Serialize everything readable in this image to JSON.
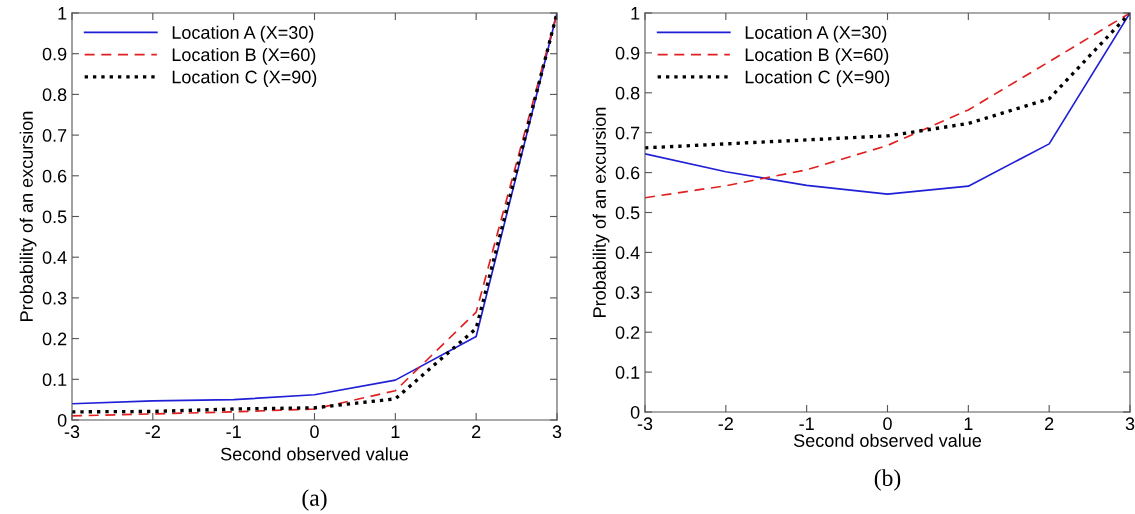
{
  "chart_data": [
    {
      "type": "line",
      "x": [
        -3,
        -2,
        -1,
        0,
        1,
        2,
        3
      ],
      "xlabel": "Second observed value",
      "ylabel": "Probability of an excursion",
      "xlim": [
        -3,
        3
      ],
      "ylim": [
        0,
        1
      ],
      "xticks": [
        -3,
        -2,
        -1,
        0,
        1,
        2,
        3
      ],
      "yticks": [
        0,
        0.1,
        0.2,
        0.3,
        0.4,
        0.5,
        0.6,
        0.7,
        0.8,
        0.9,
        1
      ],
      "grid": false,
      "legend": "top left",
      "annotations": [
        "(a)"
      ],
      "series": [
        {
          "name": "Location A (X=30)",
          "color": "#1f1fd6",
          "line_style": "solid",
          "values": [
            0.04,
            0.047,
            0.05,
            0.062,
            0.098,
            0.205,
            1
          ]
        },
        {
          "name": "Location B (X=60)",
          "color": "#e02020",
          "line_style": "dashed",
          "values": [
            0.01,
            0.015,
            0.02,
            0.027,
            0.072,
            0.265,
            1
          ]
        },
        {
          "name": "Location C (X=90)",
          "color": "#000000",
          "line_style": "dotted",
          "values": [
            0.02,
            0.021,
            0.027,
            0.03,
            0.052,
            0.225,
            1
          ]
        }
      ]
    },
    {
      "type": "line",
      "x": [
        -3,
        -2,
        -1,
        0,
        1,
        2,
        3
      ],
      "xlabel": "Second observed value",
      "ylabel": "Probability of an excursion",
      "xlim": [
        -3,
        3
      ],
      "ylim": [
        0,
        1
      ],
      "xticks": [
        -3,
        -2,
        -1,
        0,
        1,
        2,
        3
      ],
      "yticks": [
        0,
        0.1,
        0.2,
        0.3,
        0.4,
        0.5,
        0.6,
        0.7,
        0.8,
        0.9,
        1
      ],
      "grid": false,
      "legend": "top left",
      "annotations": [
        "(b)"
      ],
      "series": [
        {
          "name": "Location A (X=30)",
          "color": "#1f1fd6",
          "line_style": "solid",
          "values": [
            0.647,
            0.602,
            0.568,
            0.546,
            0.566,
            0.672,
            1
          ]
        },
        {
          "name": "Location B (X=60)",
          "color": "#e02020",
          "line_style": "dashed",
          "values": [
            0.537,
            0.567,
            0.607,
            0.668,
            0.757,
            0.878,
            1
          ]
        },
        {
          "name": "Location C (X=90)",
          "color": "#000000",
          "line_style": "dotted",
          "values": [
            0.662,
            0.672,
            0.682,
            0.692,
            0.723,
            0.785,
            1
          ]
        }
      ]
    }
  ]
}
